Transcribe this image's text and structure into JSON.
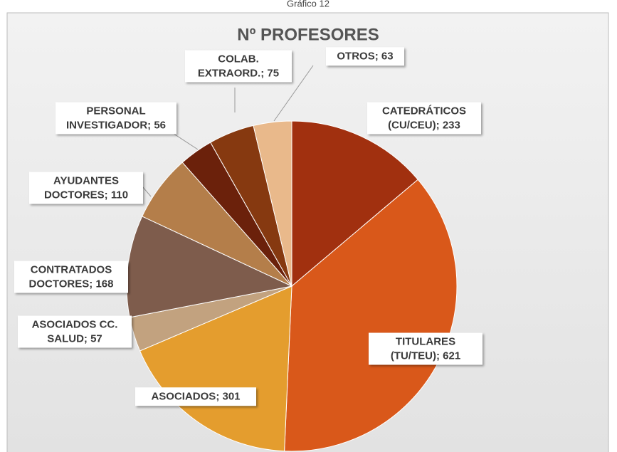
{
  "caption": "Gráfico 12",
  "chart_data": {
    "type": "pie",
    "title": "Nº PROFESORES",
    "categories": [
      "CATEDRÁTICOS (CU/CEU)",
      "TITULARES (TU/TEU)",
      "ASOCIADOS",
      "ASOCIADOS CC. SALUD",
      "CONTRATADOS DOCTORES",
      "AYUDANTES DOCTORES",
      "PERSONAL INVESTIGADOR",
      "COLAB. EXTRAORD.",
      "OTROS"
    ],
    "values": [
      233,
      621,
      301,
      57,
      168,
      110,
      56,
      75,
      63
    ],
    "colors": [
      "#a1300f",
      "#d9581a",
      "#e49d2e",
      "#c2a27f",
      "#7e5c4c",
      "#b47e4a",
      "#6b210b",
      "#863910",
      "#e9b98b"
    ],
    "label_separator": "; "
  }
}
